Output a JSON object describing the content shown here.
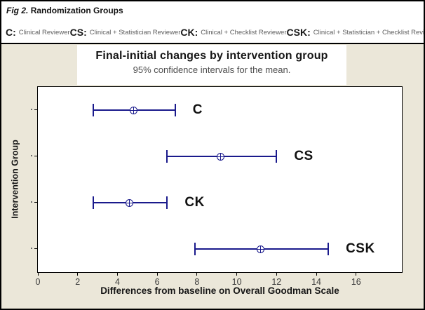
{
  "figure": {
    "caption_prefix": "Fig 2.",
    "caption_rest": "Randomization Groups"
  },
  "legend": {
    "items": [
      {
        "key": "C:",
        "label": "Clinical Reviewer"
      },
      {
        "key": "CS:",
        "label": "Clinical + Statistician Reviewer"
      },
      {
        "key": "CK:",
        "label": "Clinical + Checklist Reviewer"
      },
      {
        "key": "CSK:",
        "label": "Clinical + Statistician + Checklist Reviewer"
      }
    ]
  },
  "chart_data": {
    "type": "scatter",
    "subtype": "95%-confidence-interval-plot",
    "title": "Final-initial changes by intervention group",
    "subtitle": "95% confidence intervals for the mean.",
    "xlabel": "Differences from baseline on Overall Goodman Scale",
    "ylabel": "Intervention Group",
    "x_ticks": [
      0,
      2,
      4,
      6,
      8,
      10,
      12,
      14,
      16
    ],
    "xlim": [
      0,
      18.3
    ],
    "categories": [
      "C",
      "CS",
      "CK",
      "CSK"
    ],
    "groups": [
      {
        "label": "C",
        "mean": 4.8,
        "ci_low": 2.8,
        "ci_high": 6.9
      },
      {
        "label": "CS",
        "mean": 9.2,
        "ci_low": 6.5,
        "ci_high": 12.0
      },
      {
        "label": "CK",
        "mean": 4.6,
        "ci_low": 2.8,
        "ci_high": 6.5
      },
      {
        "label": "CSK",
        "mean": 11.2,
        "ci_low": 7.9,
        "ci_high": 14.6
      }
    ],
    "legend_position": "top",
    "grid": false
  },
  "colors": {
    "interval": "#1a1a8c",
    "chart_bg": "#ebe7d9",
    "panel_bg": "#ffffff",
    "border": "#000000"
  }
}
